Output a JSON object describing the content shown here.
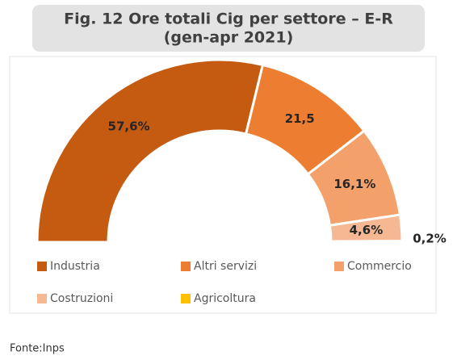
{
  "chart_data": {
    "type": "half-donut",
    "title": "Fig. 12 Ore totali Cig per settore  – E-R",
    "subtitle": "(gen-apr 2021)",
    "categories": [
      "Industria",
      "Altri servizi",
      "Commercio",
      "Costruzioni",
      "Agricoltura"
    ],
    "values": [
      57.6,
      21.5,
      16.1,
      4.6,
      0.2
    ],
    "value_labels": [
      "57,6%",
      "21,5",
      "16,1%",
      "4,6%",
      "0,2%"
    ],
    "colors": [
      "#c55a11",
      "#ed7d31",
      "#f4a06a",
      "#f6b893",
      "#ffc000"
    ],
    "source": "Fonte:Inps"
  }
}
